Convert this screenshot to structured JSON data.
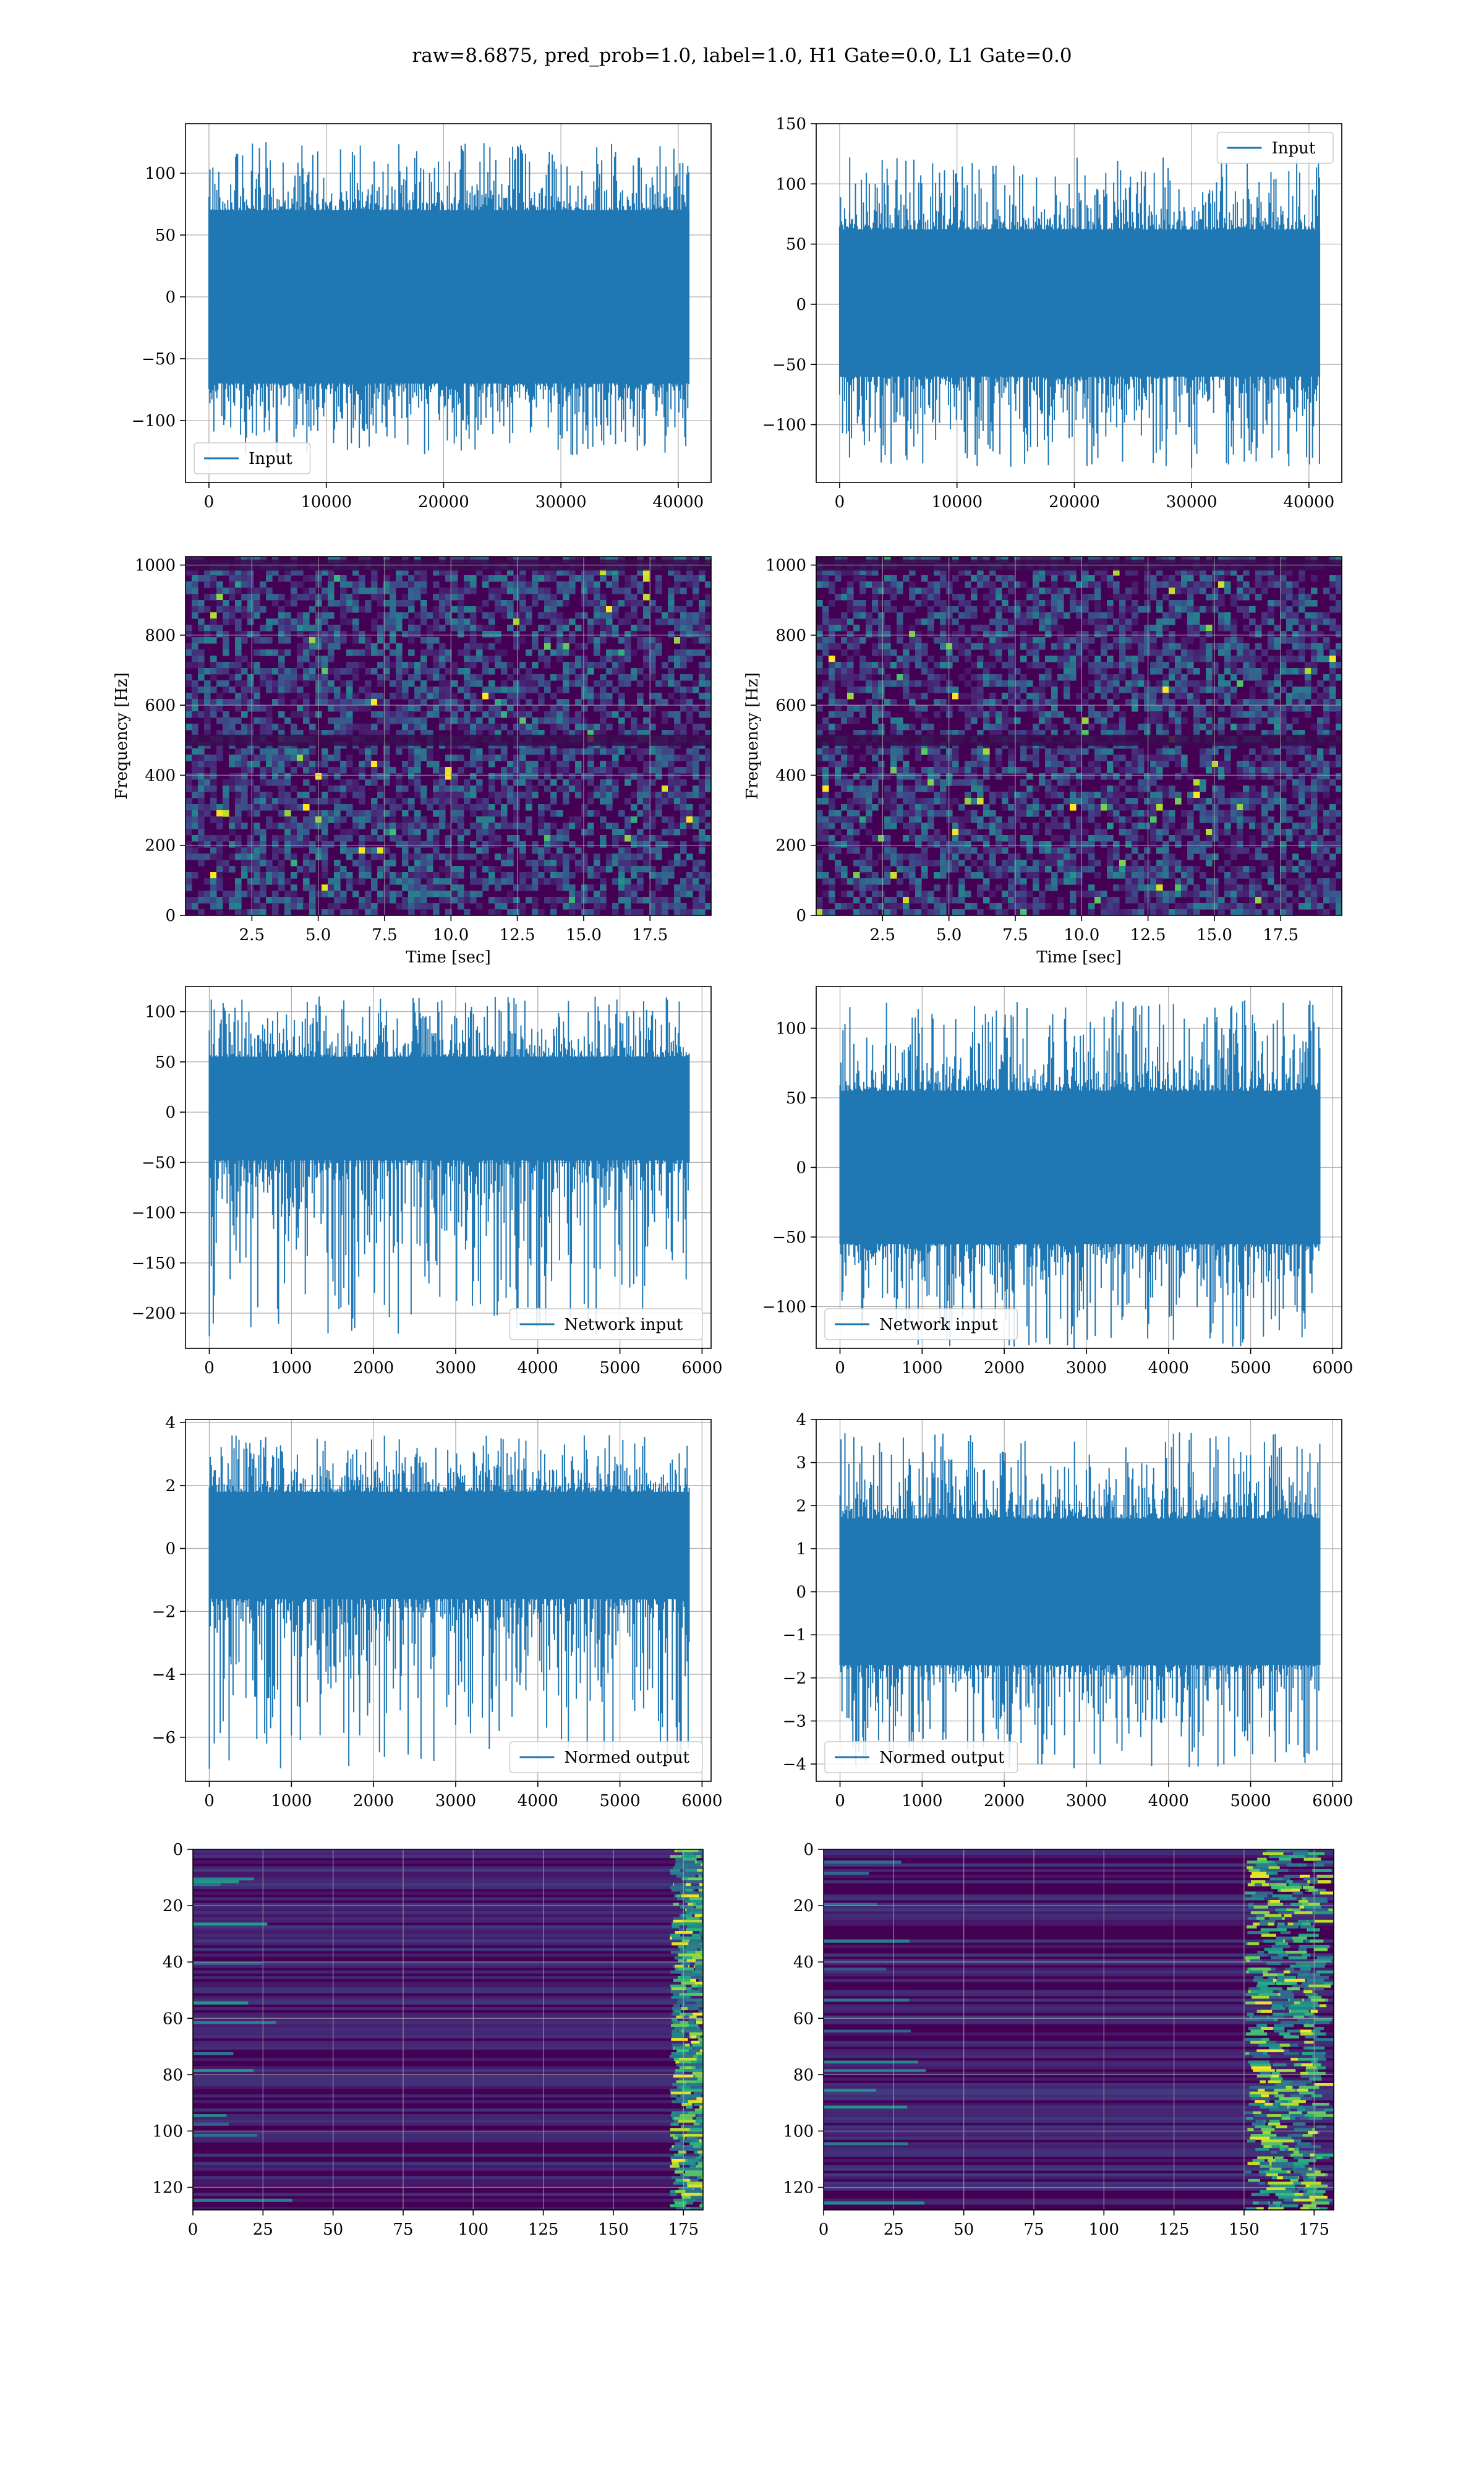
{
  "title": "raw=8.6875, pred_prob=1.0, label=1.0, H1 Gate=0.0, L1 Gate=0.0",
  "colors": {
    "line": "#1f77b4",
    "grid": "#b0b0b0",
    "viridis_low": "#440154",
    "viridis_high": "#fde725"
  },
  "chart_data": [
    {
      "id": "input-h1",
      "type": "line",
      "title": "",
      "xlabel": "",
      "ylabel": "",
      "xlim": [
        -2000,
        42800
      ],
      "ylim": [
        -150,
        140
      ],
      "grid": true,
      "legend_loc": "lower-left",
      "xticks": [
        0,
        10000,
        20000,
        30000,
        40000
      ],
      "xtick_labels": [
        "0",
        "10000",
        "20000",
        "30000",
        "40000"
      ],
      "yticks": [
        -100,
        -50,
        0,
        50,
        100
      ],
      "ytick_labels": [
        "−100",
        "−50",
        "0",
        "50",
        "100"
      ],
      "series": [
        {
          "name": "Input",
          "x_range": [
            0,
            40960
          ],
          "band": [
            -70,
            70
          ],
          "peak_max": 125,
          "peak_min": -128,
          "x_min": 31000
        }
      ]
    },
    {
      "id": "input-l1",
      "type": "line",
      "title": "",
      "xlabel": "",
      "ylabel": "",
      "xlim": [
        -2000,
        42800
      ],
      "ylim": [
        -148,
        150
      ],
      "grid": true,
      "legend_loc": "upper-right",
      "xticks": [
        0,
        10000,
        20000,
        30000,
        40000
      ],
      "xtick_labels": [
        "0",
        "10000",
        "20000",
        "30000",
        "40000"
      ],
      "yticks": [
        -100,
        -50,
        0,
        50,
        100,
        150
      ],
      "ytick_labels": [
        "−100",
        "−50",
        "0",
        "50",
        "100",
        "150"
      ],
      "series": [
        {
          "name": "Input",
          "x_range": [
            0,
            40960
          ],
          "band": [
            -60,
            62
          ],
          "peak_max": 122,
          "peak_min": -136,
          "x_min": 30000
        }
      ]
    },
    {
      "id": "spectrogram-h1",
      "type": "heatmap",
      "title": "",
      "xlabel": "Time [sec]",
      "ylabel": "Frequency [Hz]",
      "xlim": [
        0.0,
        19.8
      ],
      "ylim": [
        0,
        1024
      ],
      "grid": true,
      "xticks": [
        2.5,
        5.0,
        7.5,
        10.0,
        12.5,
        15.0,
        17.5
      ],
      "xtick_labels": [
        "2.5",
        "5.0",
        "7.5",
        "10.0",
        "12.5",
        "15.0",
        "17.5"
      ],
      "yticks": [
        0,
        200,
        400,
        600,
        800,
        1000
      ],
      "ytick_labels": [
        "0",
        "200",
        "400",
        "600",
        "800",
        "1000"
      ],
      "dark_rows_hz": [
        500,
        1000
      ]
    },
    {
      "id": "spectrogram-l1",
      "type": "heatmap",
      "title": "",
      "xlabel": "Time [sec]",
      "ylabel": "Frequency [Hz]",
      "xlim": [
        0.0,
        19.8
      ],
      "ylim": [
        0,
        1024
      ],
      "grid": true,
      "xticks": [
        2.5,
        5.0,
        7.5,
        10.0,
        12.5,
        15.0,
        17.5
      ],
      "xtick_labels": [
        "2.5",
        "5.0",
        "7.5",
        "10.0",
        "12.5",
        "15.0",
        "17.5"
      ],
      "yticks": [
        0,
        200,
        400,
        600,
        800,
        1000
      ],
      "ytick_labels": [
        "0",
        "200",
        "400",
        "600",
        "800",
        "1000"
      ],
      "dark_rows_hz": [
        500,
        1000
      ]
    },
    {
      "id": "network-input-h1",
      "type": "line",
      "title": "",
      "xlabel": "",
      "ylabel": "",
      "xlim": [
        -290,
        6110
      ],
      "ylim": [
        -235,
        125
      ],
      "grid": true,
      "legend_loc": "lower-right",
      "xticks": [
        0,
        1000,
        2000,
        3000,
        4000,
        5000,
        6000
      ],
      "xtick_labels": [
        "0",
        "1000",
        "2000",
        "3000",
        "4000",
        "5000",
        "6000"
      ],
      "yticks": [
        -200,
        -150,
        -100,
        -50,
        0,
        50,
        100
      ],
      "ytick_labels": [
        "−200",
        "−150",
        "−100",
        "−50",
        "0",
        "50",
        "100"
      ],
      "series": [
        {
          "name": "Network input",
          "x_range": [
            0,
            5849
          ],
          "band": [
            -48,
            55
          ],
          "peak_max": 115,
          "peak_min": -223,
          "x_min": 0
        }
      ]
    },
    {
      "id": "network-input-l1",
      "type": "line",
      "title": "",
      "xlabel": "",
      "ylabel": "",
      "xlim": [
        -290,
        6110
      ],
      "ylim": [
        -130,
        130
      ],
      "grid": true,
      "legend_loc": "lower-left",
      "xticks": [
        0,
        1000,
        2000,
        3000,
        4000,
        5000,
        6000
      ],
      "xtick_labels": [
        "0",
        "1000",
        "2000",
        "3000",
        "4000",
        "5000",
        "6000"
      ],
      "yticks": [
        -100,
        -50,
        0,
        50,
        100
      ],
      "ytick_labels": [
        "−100",
        "−50",
        "0",
        "50",
        "100"
      ],
      "series": [
        {
          "name": "Network input",
          "x_range": [
            0,
            5849
          ],
          "band": [
            -55,
            55
          ],
          "peak_max": 120,
          "peak_min": -130,
          "x_min": 2850
        }
      ]
    },
    {
      "id": "normed-output-h1",
      "type": "line",
      "title": "",
      "xlabel": "",
      "ylabel": "",
      "xlim": [
        -290,
        6110
      ],
      "ylim": [
        -7.4,
        4.1
      ],
      "grid": true,
      "legend_loc": "lower-right",
      "xticks": [
        0,
        1000,
        2000,
        3000,
        4000,
        5000,
        6000
      ],
      "xtick_labels": [
        "0",
        "1000",
        "2000",
        "3000",
        "4000",
        "5000",
        "6000"
      ],
      "yticks": [
        -6,
        -4,
        -2,
        0,
        2,
        4
      ],
      "ytick_labels": [
        "−6",
        "−4",
        "−2",
        "0",
        "2",
        "4"
      ],
      "series": [
        {
          "name": "Normed output",
          "x_range": [
            0,
            5849
          ],
          "band": [
            -1.6,
            1.8
          ],
          "peak_max": 3.6,
          "peak_min": -7.0,
          "x_min": 0
        }
      ]
    },
    {
      "id": "normed-output-l1",
      "type": "line",
      "title": "",
      "xlabel": "",
      "ylabel": "",
      "xlim": [
        -290,
        6110
      ],
      "ylim": [
        -4.4,
        4.0
      ],
      "grid": true,
      "legend_loc": "lower-left",
      "xticks": [
        0,
        1000,
        2000,
        3000,
        4000,
        5000,
        6000
      ],
      "xtick_labels": [
        "0",
        "1000",
        "2000",
        "3000",
        "4000",
        "5000",
        "6000"
      ],
      "yticks": [
        -4,
        -3,
        -2,
        -1,
        0,
        1,
        2,
        3,
        4
      ],
      "ytick_labels": [
        "−4",
        "−3",
        "−2",
        "−1",
        "0",
        "1",
        "2",
        "3",
        "4"
      ],
      "series": [
        {
          "name": "Normed output",
          "x_range": [
            0,
            5849
          ],
          "band": [
            -1.7,
            1.7
          ],
          "peak_max": 3.7,
          "peak_min": -4.1,
          "x_min": 2850
        }
      ]
    },
    {
      "id": "feature-map-h1",
      "type": "heatmap",
      "title": "",
      "xlabel": "",
      "ylabel": "",
      "xlim": [
        0,
        182
      ],
      "ylim": [
        128,
        0
      ],
      "grid": true,
      "y_inverted": true,
      "xticks": [
        0,
        25,
        50,
        75,
        100,
        125,
        150,
        175
      ],
      "xtick_labels": [
        "0",
        "25",
        "50",
        "75",
        "100",
        "125",
        "150",
        "175"
      ],
      "yticks": [
        0,
        20,
        40,
        60,
        80,
        100,
        120
      ],
      "ytick_labels": [
        "0",
        "20",
        "40",
        "60",
        "80",
        "100",
        "120"
      ],
      "bright_cols": [
        170,
        182
      ]
    },
    {
      "id": "feature-map-l1",
      "type": "heatmap",
      "title": "",
      "xlabel": "",
      "ylabel": "",
      "xlim": [
        0,
        182
      ],
      "ylim": [
        128,
        0
      ],
      "grid": true,
      "y_inverted": true,
      "xticks": [
        0,
        25,
        50,
        75,
        100,
        125,
        150,
        175
      ],
      "xtick_labels": [
        "0",
        "25",
        "50",
        "75",
        "100",
        "125",
        "150",
        "175"
      ],
      "yticks": [
        0,
        20,
        40,
        60,
        80,
        100,
        120
      ],
      "ytick_labels": [
        "0",
        "20",
        "40",
        "60",
        "80",
        "100",
        "120"
      ],
      "bright_cols": [
        150,
        176
      ]
    }
  ]
}
